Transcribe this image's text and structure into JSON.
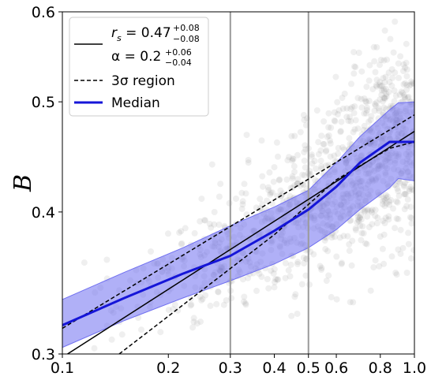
{
  "chart_data": {
    "type": "scatter",
    "xscale": "log",
    "yscale": "log",
    "xlim": [
      0.1,
      1.0
    ],
    "ylim": [
      0.3,
      0.6
    ],
    "xlabel": "",
    "ylabel": "B",
    "x_ticks": [
      {
        "value": 0.1,
        "label": "0.1"
      },
      {
        "value": 0.2,
        "label": "0.2"
      },
      {
        "value": 0.3,
        "label": "0.3"
      },
      {
        "value": 0.4,
        "label": "0.4"
      },
      {
        "value": 0.5,
        "label": "0.5"
      },
      {
        "value": 0.6,
        "label": "0.6"
      },
      {
        "value": 0.8,
        "label": "0.8"
      },
      {
        "value": 1.0,
        "label": "1.0"
      }
    ],
    "y_ticks": [
      {
        "value": 0.3,
        "label": "0.3"
      },
      {
        "value": 0.4,
        "label": "0.4"
      },
      {
        "value": 0.5,
        "label": "0.5"
      },
      {
        "value": 0.6,
        "label": "0.6"
      }
    ],
    "vertical_lines": [
      0.3,
      0.5
    ],
    "legend_position": "top-left",
    "legend": {
      "fit_rs": "r",
      "fit_rs_sub": "s",
      "fit_rs_value": " = 0.47",
      "fit_rs_up": "+0.08",
      "fit_rs_down": "−0.08",
      "fit_alpha": "α = 0.2",
      "fit_alpha_up": "+0.06",
      "fit_alpha_down": "−0.04",
      "sigma_region": "3σ region",
      "median": "Median"
    },
    "fit_line": {
      "rs": 0.47,
      "alpha": 0.2,
      "x": [
        0.1,
        1.0
      ],
      "y": [
        0.298,
        0.471
      ]
    },
    "sigma_upper": {
      "x": [
        0.1,
        1.0
      ],
      "y": [
        0.316,
        0.487
      ]
    },
    "sigma_lower": {
      "x": [
        0.145,
        0.4,
        0.6,
        0.85,
        1.0
      ],
      "y": [
        0.3,
        0.382,
        0.427,
        0.455,
        0.461
      ]
    },
    "median": {
      "x": [
        0.1,
        0.15,
        0.22,
        0.3,
        0.4,
        0.5,
        0.6,
        0.7,
        0.85,
        1.0
      ],
      "y": [
        0.318,
        0.336,
        0.353,
        0.366,
        0.385,
        0.402,
        0.421,
        0.442,
        0.461,
        0.461
      ]
    },
    "band": {
      "x": [
        0.1,
        0.15,
        0.22,
        0.3,
        0.4,
        0.5,
        0.6,
        0.7,
        0.85,
        0.9,
        1.0
      ],
      "upper": [
        0.335,
        0.354,
        0.372,
        0.389,
        0.404,
        0.418,
        0.442,
        0.466,
        0.492,
        0.499,
        0.5
      ],
      "lower": [
        0.304,
        0.321,
        0.336,
        0.348,
        0.36,
        0.372,
        0.386,
        0.402,
        0.42,
        0.428,
        0.426
      ]
    },
    "scatter": {
      "count": 1100,
      "color": "#808080",
      "opacity": 0.13,
      "description": "dense cloud of faint gray points following the trend, most concentrated at x between 0.5 and 1.0"
    },
    "colors": {
      "median": "#1515d8",
      "band": "#6f6ff0",
      "fit": "#000000",
      "vline": "#9a9a9a"
    }
  }
}
